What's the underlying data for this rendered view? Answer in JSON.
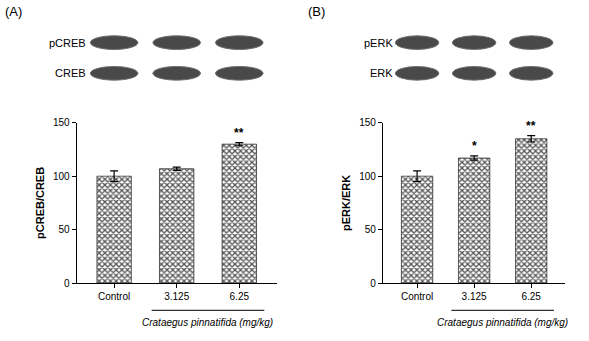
{
  "chart_data": [
    {
      "type": "bar",
      "panel": "(A)",
      "blot_labels": [
        "pCREB",
        "CREB"
      ],
      "categories": [
        "Control",
        "3.125",
        "6.25"
      ],
      "values": [
        100,
        107,
        130
      ],
      "errors": [
        5,
        1.5,
        1.5
      ],
      "color": "#555555",
      "y_label": "pCREB/CREB",
      "x_label": "Crataegus pinnatifida (mg/kg)",
      "ylim": [
        0,
        150
      ],
      "yticks": [
        0,
        50,
        100,
        150
      ],
      "annotations": [
        {
          "category": "6.25",
          "text": "**"
        }
      ]
    },
    {
      "type": "bar",
      "panel": "(B)",
      "blot_labels": [
        "pERK",
        "ERK"
      ],
      "categories": [
        "Control",
        "3.125",
        "6.25"
      ],
      "values": [
        100,
        117,
        135
      ],
      "errors": [
        5,
        2,
        3
      ],
      "color": "#555555",
      "y_label": "pERK/ERK",
      "x_label": "Crataegus pinnatifida (mg/kg)",
      "ylim": [
        0,
        150
      ],
      "yticks": [
        0,
        50,
        100,
        150
      ],
      "annotations": [
        {
          "category": "3.125",
          "text": "*"
        },
        {
          "category": "6.25",
          "text": "**"
        }
      ]
    }
  ]
}
